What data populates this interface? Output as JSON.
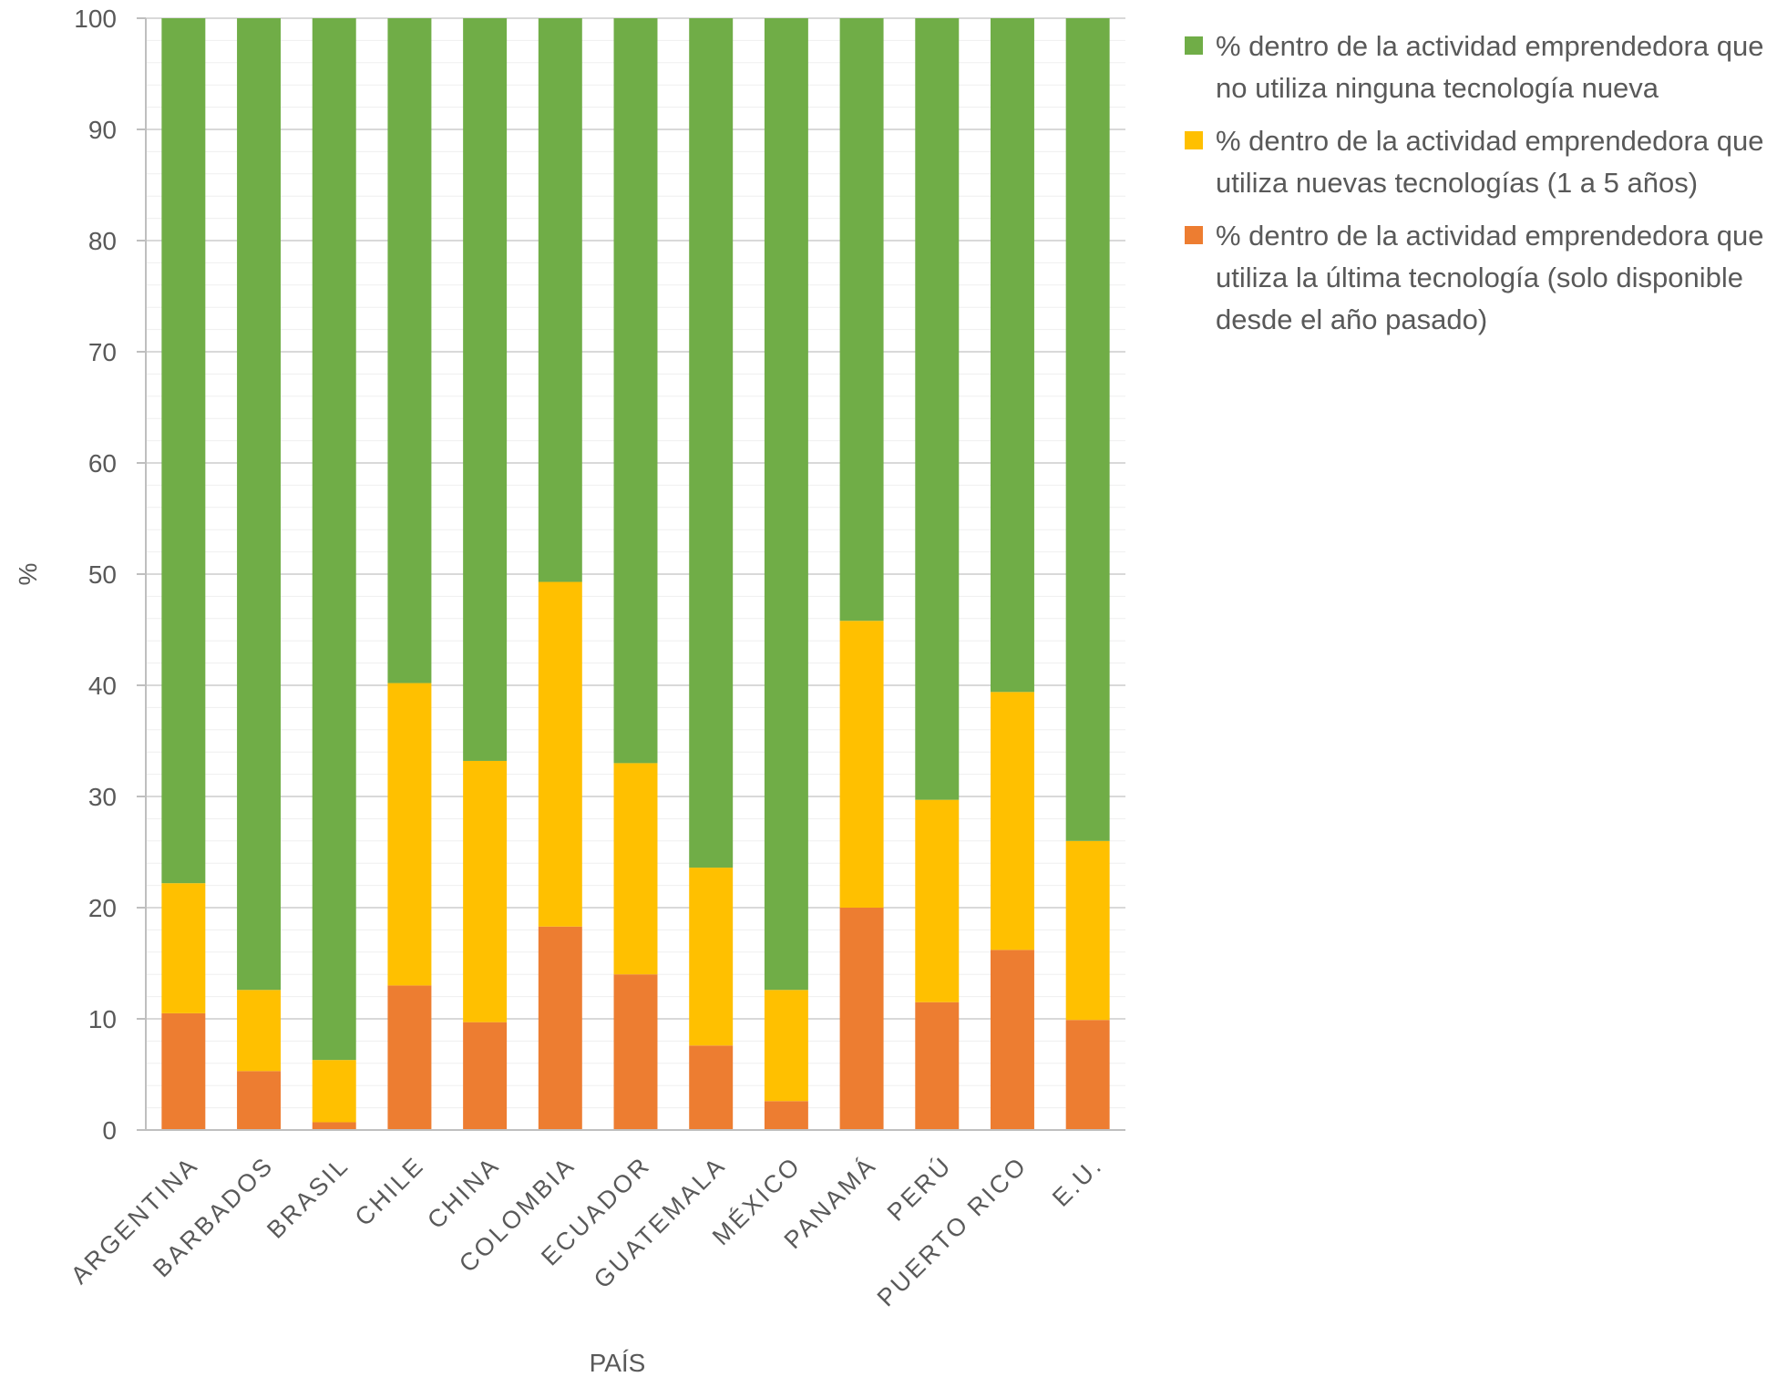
{
  "chart_data": {
    "type": "bar",
    "stacked": true,
    "title": "",
    "xlabel": "PAÍS",
    "ylabel": "%",
    "ylim": [
      0,
      100
    ],
    "yticks": [
      "0",
      "10",
      "20",
      "30",
      "40",
      "50",
      "60",
      "70",
      "80",
      "90",
      "100"
    ],
    "categories": [
      "ARGENTINA",
      "BARBADOS",
      "BRASIL",
      "CHILE",
      "CHINA",
      "COLOMBIA",
      "ECUADOR",
      "GUATEMALA",
      "MÉXICO",
      "PANAMÁ",
      "PERÚ",
      "PUERTO RICO",
      "E.U."
    ],
    "series": [
      {
        "name": "% dentro de la actividad emprendedora que utiliza la última tecnología (solo disponible desde el año pasado)",
        "color": "#ED7D31",
        "values": [
          10.5,
          5.3,
          0.7,
          13.0,
          9.7,
          18.3,
          14.0,
          7.6,
          2.6,
          20.0,
          11.5,
          16.2,
          9.9
        ]
      },
      {
        "name": "% dentro de la actividad emprendedora que utiliza nuevas tecnologías (1 a 5 años)",
        "color": "#FFC000",
        "values": [
          11.7,
          7.3,
          5.6,
          27.2,
          23.5,
          31.0,
          19.0,
          16.0,
          10.0,
          25.8,
          18.2,
          23.2,
          16.1
        ]
      },
      {
        "name": "% dentro de la actividad emprendedora que no utiliza ninguna tecnología nueva",
        "color": "#70AD47",
        "values": [
          77.8,
          87.4,
          93.7,
          59.8,
          66.8,
          50.7,
          67.0,
          76.4,
          87.4,
          54.2,
          70.3,
          60.6,
          74.0
        ]
      }
    ],
    "legend": {
      "position": "right",
      "items": [
        {
          "label": "% dentro de la actividad emprendedora que no utiliza ninguna tecnología nueva",
          "color": "#70AD47"
        },
        {
          "label": "% dentro de la actividad emprendedora que utiliza nuevas tecnologías (1 a 5 años)",
          "color": "#FFC000"
        },
        {
          "label": "% dentro de la actividad emprendedora que utiliza la última tecnología (solo disponible desde el año pasado)",
          "color": "#ED7D31"
        }
      ]
    },
    "colors": {
      "grid": "#D9D9D9",
      "axis": "#BFBFBF",
      "text": "#595959"
    }
  }
}
